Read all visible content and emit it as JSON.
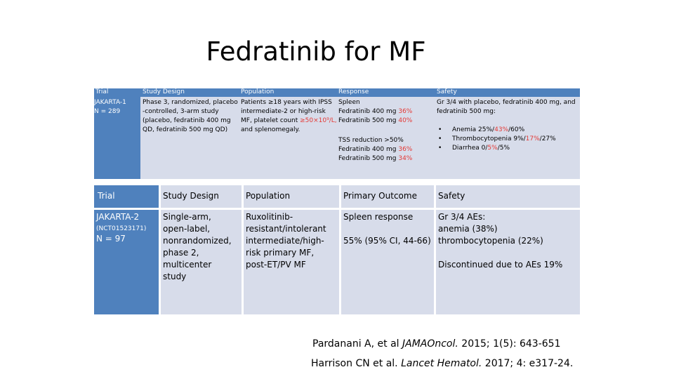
{
  "title": "Fedratinib for MF",
  "table1": {
    "headers": [
      "Trial",
      "Study Design",
      "Population",
      "Response",
      "Safety"
    ],
    "trial": "JAKARTA-1",
    "n": "N = 289",
    "design": [
      "Phase 3, randomized, placebo",
      "-controlled, 3-arm study",
      "(placebo, fedratinib 400 mg",
      "QD, fedratinib 500 mg QD)"
    ],
    "population_prefix": "Patients ≥18 years with IPSS",
    "population_lines": [
      "intermediate-2 or high-risk"
    ],
    "population_platelet_prefix": "MF, platelet count ",
    "population_platelet_red": "≥50×10⁹/L,",
    "population_last": "and splenomegaly.",
    "response": {
      "spleen_label": "Spleen",
      "spleen_400_prefix": "Fedratinib 400 mg ",
      "spleen_400_val": "36%",
      "spleen_500_prefix": "Fedratinib 500 mg ",
      "spleen_500_val": "40%",
      "tss_label": "TSS reduction >50%",
      "tss_400_prefix": "Fedratinib 400 mg ",
      "tss_400_val": "36%",
      "tss_500_prefix": "Fedratinib 500 mg ",
      "tss_500_val": "34%"
    },
    "safety": {
      "intro": "Gr 3/4 with placebo, fedratinib 400 mg, and fedratinib 500 mg:",
      "items": [
        {
          "label": "Anemia ",
          "a": "25%/",
          "b": "43%",
          "c": "/60%"
        },
        {
          "label": "Thrombocytopenia ",
          "a": "9%/",
          "b": "17%",
          "c": "/27%"
        },
        {
          "label": "Diarrhea ",
          "a": "0/",
          "b": "5%",
          "c": "/5%"
        }
      ]
    }
  },
  "table2": {
    "headers": [
      "Trial",
      "Study Design",
      "Population",
      "Primary Outcome",
      "Safety"
    ],
    "trial": "JAKARTA-2",
    "nct": "(NCT01523171)",
    "n": "N = 97",
    "design": "Single-arm, open-label, nonrandomized, phase 2, multicenter study",
    "population": "Ruxolitinib-resistant/intolerant intermediate/high-risk primary MF, post-ET/PV MF",
    "outcome_label": "Spleen response",
    "outcome_value": "55% (95% CI, 44-66)",
    "safety_line1": "Gr 3/4 AEs:",
    "safety_line2": "anemia (38%) thrombocytopenia (22%)",
    "safety_line3": "Discontinued due to AEs 19%"
  },
  "references": {
    "ref1_prefix": "Pardanani A, et al ",
    "ref1_journal": "JAMAOncol.",
    "ref1_suffix": " 2015; 1(5): 643-651",
    "ref2_prefix": "Harrison CN et al. ",
    "ref2_journal": "Lancet Hematol.",
    "ref2_suffix": " 2017; 4: e317-24."
  }
}
